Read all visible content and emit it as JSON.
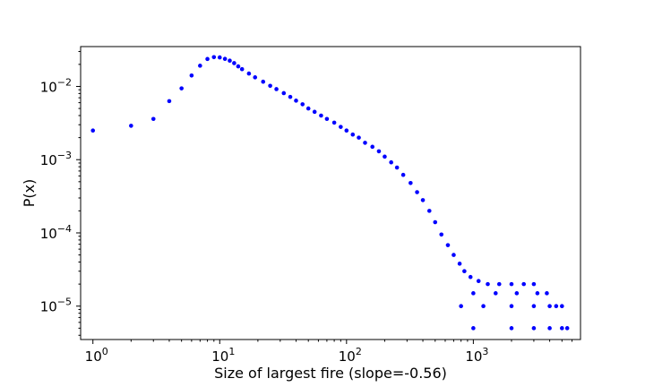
{
  "chart_data": {
    "type": "scatter",
    "title": "",
    "xlabel": "Size of largest fire (slope=-0.56)",
    "ylabel": "P(x)",
    "xscale": "log",
    "yscale": "log",
    "xlim": [
      0.8,
      7000
    ],
    "ylim": [
      3.5e-06,
      0.035
    ],
    "grid": false,
    "marker_color": "#0000ff",
    "x_ticks": [
      {
        "value": 1,
        "base": "10",
        "exp": "0"
      },
      {
        "value": 10,
        "base": "10",
        "exp": "1"
      },
      {
        "value": 100,
        "base": "10",
        "exp": "2"
      },
      {
        "value": 1000,
        "base": "10",
        "exp": "3"
      }
    ],
    "y_ticks": [
      {
        "value": 1e-05,
        "base": "10",
        "exp": "−5"
      },
      {
        "value": 0.0001,
        "base": "10",
        "exp": "−4"
      },
      {
        "value": 0.001,
        "base": "10",
        "exp": "−3"
      },
      {
        "value": 0.01,
        "base": "10",
        "exp": "−2"
      }
    ],
    "points": [
      [
        1,
        0.0025
      ],
      [
        2,
        0.0029
      ],
      [
        3,
        0.0036
      ],
      [
        4,
        0.0063
      ],
      [
        5,
        0.0094
      ],
      [
        6,
        0.0141
      ],
      [
        7,
        0.0192
      ],
      [
        8,
        0.0237
      ],
      [
        9,
        0.0251
      ],
      [
        10,
        0.0249
      ],
      [
        11,
        0.0238
      ],
      [
        12,
        0.0225
      ],
      [
        13,
        0.0208
      ],
      [
        14,
        0.0188
      ],
      [
        15,
        0.0172
      ],
      [
        17,
        0.015
      ],
      [
        19,
        0.0133
      ],
      [
        22,
        0.0116
      ],
      [
        25,
        0.0102
      ],
      [
        28,
        0.0092
      ],
      [
        32,
        0.0081
      ],
      [
        36,
        0.0072
      ],
      [
        40,
        0.0064
      ],
      [
        45,
        0.0057
      ],
      [
        50,
        0.005
      ],
      [
        56,
        0.0045
      ],
      [
        63,
        0.004
      ],
      [
        70,
        0.0036
      ],
      [
        80,
        0.0032
      ],
      [
        90,
        0.0028
      ],
      [
        100,
        0.0025
      ],
      [
        112,
        0.0022
      ],
      [
        125,
        0.002
      ],
      [
        140,
        0.0017
      ],
      [
        160,
        0.0015
      ],
      [
        180,
        0.0013
      ],
      [
        200,
        0.0011
      ],
      [
        225,
        0.00092
      ],
      [
        250,
        0.00078
      ],
      [
        280,
        0.00062
      ],
      [
        320,
        0.00048
      ],
      [
        360,
        0.00036
      ],
      [
        400,
        0.00028
      ],
      [
        450,
        0.0002
      ],
      [
        500,
        0.00014
      ],
      [
        560,
        9.5e-05
      ],
      [
        630,
        6.8e-05
      ],
      [
        700,
        5e-05
      ],
      [
        780,
        3.8e-05
      ],
      [
        850,
        3e-05
      ],
      [
        950,
        2.5e-05
      ],
      [
        1100,
        2.2e-05
      ],
      [
        1300,
        2e-05
      ],
      [
        1600,
        2e-05
      ],
      [
        2000,
        2e-05
      ],
      [
        2500,
        2e-05
      ],
      [
        3000,
        2e-05
      ],
      [
        1000,
        1.5e-05
      ],
      [
        1500,
        1.5e-05
      ],
      [
        2200,
        1.5e-05
      ],
      [
        3200,
        1.5e-05
      ],
      [
        3800,
        1.5e-05
      ],
      [
        800,
        1e-05
      ],
      [
        1200,
        1e-05
      ],
      [
        2000,
        1e-05
      ],
      [
        3000,
        1e-05
      ],
      [
        4000,
        1e-05
      ],
      [
        4500,
        1e-05
      ],
      [
        5000,
        1e-05
      ],
      [
        1000,
        5e-06
      ],
      [
        2000,
        5e-06
      ],
      [
        3000,
        5e-06
      ],
      [
        4000,
        5e-06
      ],
      [
        5000,
        5e-06
      ],
      [
        5500,
        5e-06
      ]
    ]
  }
}
